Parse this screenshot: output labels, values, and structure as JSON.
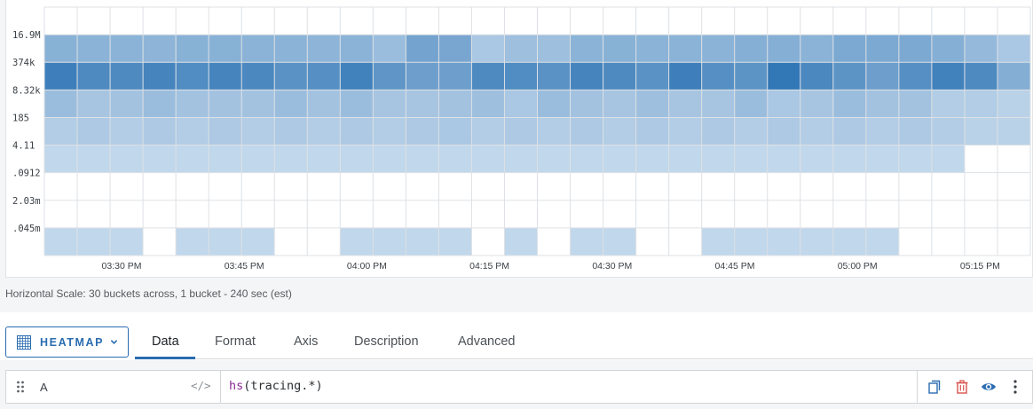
{
  "chart_data": {
    "type": "heatmap",
    "title": "",
    "xlabel": "",
    "ylabel": "",
    "x_tick_labels": [
      "03:30 PM",
      "03:45 PM",
      "04:00 PM",
      "04:15 PM",
      "04:30 PM",
      "04:45 PM",
      "05:00 PM",
      "05:15 PM"
    ],
    "y_tick_labels": [
      "16.9M",
      "374k",
      "8.32k",
      "185",
      "4.11",
      ".0912",
      "2.03m",
      ".045m"
    ],
    "y_scale": "log",
    "columns": 30,
    "rows": 9,
    "grid": true,
    "color_low": "#c9dcee",
    "color_high": "#2f75b5",
    "intensity": [
      [
        0.0,
        0.0,
        0.0,
        0.0,
        0.0,
        0.0,
        0.0,
        0.0,
        0.0,
        0.0,
        0.0,
        0.0,
        0.0,
        0.0,
        0.0,
        0.0,
        0.0,
        0.0,
        0.0,
        0.0,
        0.0,
        0.0,
        0.0,
        0.0,
        0.0,
        0.0,
        0.0,
        0.0,
        0.0,
        0.0
      ],
      [
        0.42,
        0.4,
        0.4,
        0.38,
        0.42,
        0.42,
        0.4,
        0.4,
        0.38,
        0.4,
        0.3,
        0.55,
        0.52,
        0.2,
        0.28,
        0.28,
        0.4,
        0.42,
        0.4,
        0.4,
        0.4,
        0.44,
        0.44,
        0.4,
        0.5,
        0.5,
        0.5,
        0.44,
        0.34,
        0.2
      ],
      [
        0.9,
        0.8,
        0.8,
        0.85,
        0.78,
        0.85,
        0.82,
        0.72,
        0.75,
        0.88,
        0.68,
        0.6,
        0.6,
        0.8,
        0.78,
        0.72,
        0.85,
        0.8,
        0.72,
        0.9,
        0.75,
        0.7,
        0.98,
        0.82,
        0.7,
        0.6,
        0.75,
        0.88,
        0.8,
        0.45
      ],
      [
        0.3,
        0.22,
        0.25,
        0.3,
        0.25,
        0.25,
        0.25,
        0.3,
        0.25,
        0.3,
        0.22,
        0.22,
        0.25,
        0.28,
        0.2,
        0.3,
        0.25,
        0.22,
        0.28,
        0.22,
        0.22,
        0.3,
        0.2,
        0.22,
        0.3,
        0.25,
        0.25,
        0.15,
        0.15,
        0.1
      ],
      [
        0.15,
        0.18,
        0.15,
        0.18,
        0.15,
        0.18,
        0.15,
        0.18,
        0.15,
        0.18,
        0.15,
        0.18,
        0.2,
        0.15,
        0.18,
        0.15,
        0.18,
        0.15,
        0.18,
        0.15,
        0.18,
        0.15,
        0.18,
        0.15,
        0.18,
        0.15,
        0.18,
        0.15,
        0.1,
        0.1
      ],
      [
        0.05,
        0.05,
        0.05,
        0.05,
        0.05,
        0.05,
        0.05,
        0.05,
        0.05,
        0.05,
        0.05,
        0.05,
        0.05,
        0.05,
        0.05,
        0.05,
        0.05,
        0.05,
        0.05,
        0.05,
        0.05,
        0.05,
        0.05,
        0.05,
        0.05,
        0.05,
        0.05,
        0.05,
        0.0,
        0.0
      ],
      [
        0.0,
        0.0,
        0.0,
        0.0,
        0.0,
        0.0,
        0.0,
        0.0,
        0.0,
        0.0,
        0.0,
        0.0,
        0.0,
        0.0,
        0.0,
        0.0,
        0.0,
        0.0,
        0.0,
        0.0,
        0.0,
        0.0,
        0.0,
        0.0,
        0.0,
        0.0,
        0.0,
        0.0,
        0.0,
        0.0
      ],
      [
        0.0,
        0.0,
        0.0,
        0.0,
        0.0,
        0.0,
        0.0,
        0.0,
        0.0,
        0.0,
        0.0,
        0.0,
        0.0,
        0.0,
        0.0,
        0.0,
        0.0,
        0.0,
        0.0,
        0.0,
        0.0,
        0.0,
        0.0,
        0.0,
        0.0,
        0.0,
        0.0,
        0.0,
        0.0,
        0.0
      ],
      [
        0.05,
        0.05,
        0.05,
        0.0,
        0.05,
        0.05,
        0.05,
        0.0,
        0.0,
        0.05,
        0.05,
        0.05,
        0.05,
        0.0,
        0.05,
        0.0,
        0.05,
        0.05,
        0.0,
        0.0,
        0.05,
        0.05,
        0.05,
        0.05,
        0.05,
        0.05,
        0.0,
        0.0,
        0.0,
        0.0
      ]
    ]
  },
  "caption": "Horizontal Scale: 30 buckets across, 1 bucket - 240 sec (est)",
  "viz_selector": {
    "label": "HEATMAP",
    "icon": "heatmap-grid-icon"
  },
  "tabs": [
    {
      "label": "Data",
      "active": true
    },
    {
      "label": "Format",
      "active": false
    },
    {
      "label": "Axis",
      "active": false
    },
    {
      "label": "Description",
      "active": false
    },
    {
      "label": "Advanced",
      "active": false
    }
  ],
  "query": {
    "name": "A",
    "code_toggle": "</>",
    "function_name": "hs",
    "argument": "(tracing.*)",
    "actions": [
      "copy-icon",
      "trash-icon",
      "eye-icon",
      "more-vertical-icon"
    ]
  },
  "colors": {
    "accent": "#2a6cb0",
    "delete": "#d9534f"
  }
}
